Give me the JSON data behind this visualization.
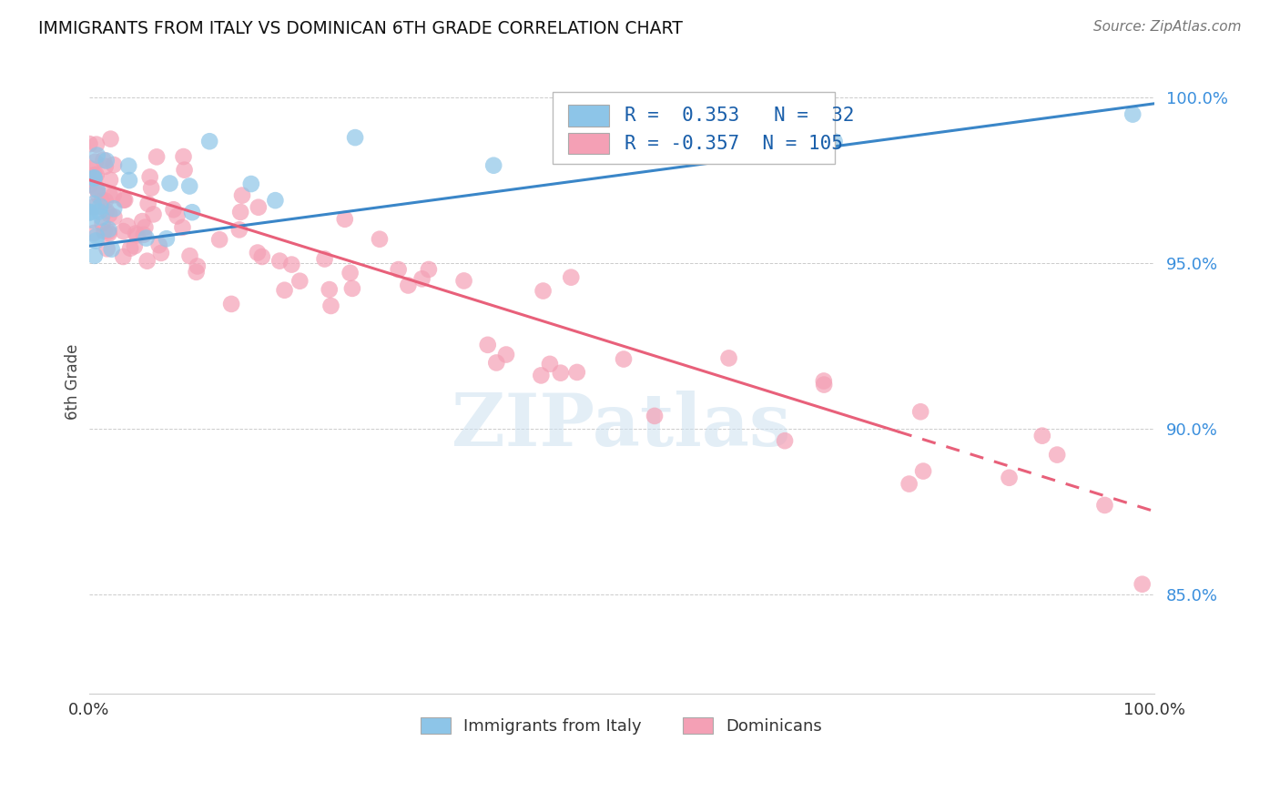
{
  "title": "IMMIGRANTS FROM ITALY VS DOMINICAN 6TH GRADE CORRELATION CHART",
  "source": "Source: ZipAtlas.com",
  "ylabel": "6th Grade",
  "xlim": [
    0.0,
    1.0
  ],
  "ylim": [
    0.82,
    1.008
  ],
  "yticks": [
    0.85,
    0.9,
    0.95,
    1.0
  ],
  "ytick_labels": [
    "85.0%",
    "90.0%",
    "95.0%",
    "100.0%"
  ],
  "italy_R": 0.353,
  "italy_N": 32,
  "dominican_R": -0.357,
  "dominican_N": 105,
  "italy_color": "#8dc5e8",
  "dominican_color": "#f4a0b5",
  "italy_line_color": "#3a86c8",
  "dominican_line_color": "#e8607a",
  "legend_italy": "Immigrants from Italy",
  "legend_dominican": "Dominicans",
  "italy_line_x0": 0.0,
  "italy_line_x1": 1.0,
  "italy_line_y0": 0.955,
  "italy_line_y1": 0.998,
  "dom_line_x0": 0.0,
  "dom_line_x1": 1.0,
  "dom_line_y0": 0.975,
  "dom_line_y1": 0.875
}
